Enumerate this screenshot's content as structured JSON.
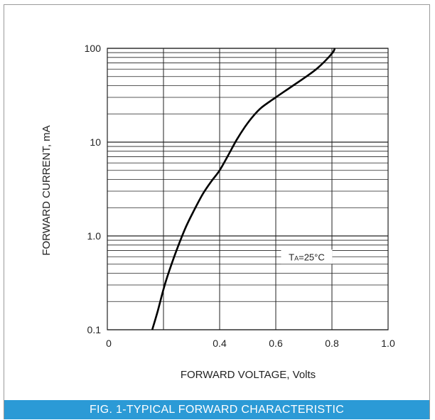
{
  "colors": {
    "caption_bg": "#2b9ad6",
    "frame": "#9a9a9a",
    "grid": "#222222",
    "curve": "#000000"
  },
  "caption": "FIG. 1-TYPICAL FORWARD CHARACTERISTIC",
  "chart_data": {
    "type": "line",
    "title": "",
    "xlabel": "FORWARD VOLTAGE, Volts",
    "ylabel": "FORWARD CURRENT, mA",
    "x_scale": "linear",
    "y_scale": "log",
    "xlim": [
      0,
      1.0
    ],
    "ylim": [
      0.1,
      100
    ],
    "x_ticks": [
      0,
      0.2,
      0.4,
      0.6,
      0.8,
      1.0
    ],
    "x_tick_labels": [
      "0",
      "",
      "0.4",
      "0.6",
      "0.8",
      "1.0"
    ],
    "y_ticks": [
      0.1,
      1.0,
      10,
      100
    ],
    "y_tick_labels": [
      "0.1",
      "1.0",
      "10",
      "100"
    ],
    "grid": true,
    "annotation": {
      "text": "TA=25°C",
      "x": 0.71,
      "y": 0.6
    },
    "series": [
      {
        "x": [
          0.16,
          0.18,
          0.2,
          0.22,
          0.25,
          0.28,
          0.31,
          0.34,
          0.37,
          0.4,
          0.43,
          0.46,
          0.49,
          0.52,
          0.55,
          0.6,
          0.65,
          0.7,
          0.75,
          0.8,
          0.81
        ],
        "y": [
          0.1,
          0.16,
          0.27,
          0.42,
          0.75,
          1.25,
          1.9,
          2.8,
          3.8,
          5.0,
          7.2,
          10.5,
          14.5,
          19.0,
          23.5,
          30,
          38,
          48,
          62,
          88,
          100
        ]
      }
    ]
  }
}
